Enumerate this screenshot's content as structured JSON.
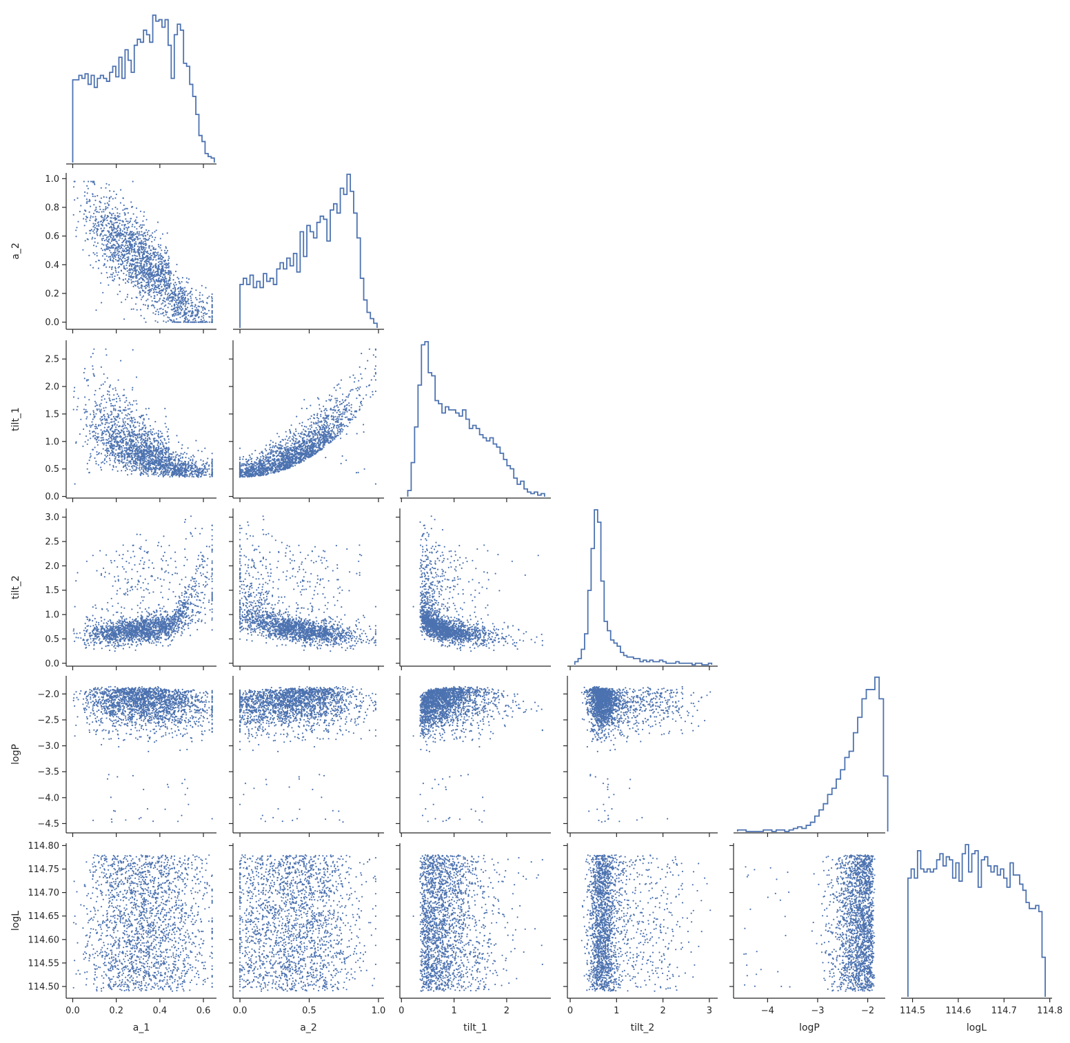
{
  "chart_data": {
    "type": "scatter",
    "title": "",
    "layout": "corner pairplot: histograms on the diagonal, scatter points below the diagonal",
    "grid": false,
    "legend": "none",
    "colors": {
      "marks": "#4c72b0",
      "axes": "#262626"
    },
    "variables": [
      {
        "name": "a_1",
        "range": [
          -0.03,
          0.66
        ],
        "ticks": [
          0,
          0.2,
          0.4,
          0.6
        ],
        "tick_labels": [
          "0.0",
          "0.2",
          "0.4",
          "0.6"
        ]
      },
      {
        "name": "a_2",
        "range": [
          -0.05,
          1.04
        ],
        "ticks": [
          0,
          0.2,
          0.4,
          0.6,
          0.8,
          1.0
        ],
        "tick_labels": [
          "0.0",
          "0.2",
          "0.4",
          "0.6",
          "0.8",
          "1.0"
        ],
        "x_ticks": [
          0,
          0.5,
          1.0
        ],
        "x_tick_labels": [
          "0.0",
          "0.5",
          "1.0"
        ]
      },
      {
        "name": "tilt_1",
        "range": [
          -0.03,
          2.84
        ],
        "ticks": [
          0,
          0.5,
          1.0,
          1.5,
          2.0,
          2.5
        ],
        "tick_labels": [
          "0.0",
          "0.5",
          "1.0",
          "1.5",
          "2.0",
          "2.5"
        ],
        "x_ticks": [
          0,
          1,
          2
        ],
        "x_tick_labels": [
          "0",
          "1",
          "2"
        ]
      },
      {
        "name": "tilt_2",
        "range": [
          -0.06,
          3.18
        ],
        "ticks": [
          0,
          0.5,
          1.0,
          1.5,
          2.0,
          2.5,
          3.0
        ],
        "tick_labels": [
          "0.0",
          "0.5",
          "1.0",
          "1.5",
          "2.0",
          "2.5",
          "3.0"
        ],
        "x_ticks": [
          0,
          1,
          2,
          3
        ],
        "x_tick_labels": [
          "0",
          "1",
          "2",
          "3"
        ]
      },
      {
        "name": "logP",
        "range": [
          -4.68,
          -1.65
        ],
        "ticks": [
          -4.5,
          -4.0,
          -3.5,
          -3.0,
          -2.5,
          -2.0
        ],
        "tick_labels": [
          "−4.5",
          "−4.0",
          "−3.5",
          "−3.0",
          "−2.5",
          "−2.0"
        ],
        "x_ticks": [
          -4,
          -3,
          -2
        ],
        "x_tick_labels": [
          "−4",
          "−3",
          "−2"
        ]
      },
      {
        "name": "logL",
        "range": [
          114.475,
          114.805
        ],
        "ticks": [
          114.5,
          114.55,
          114.6,
          114.65,
          114.7,
          114.75,
          114.8
        ],
        "tick_labels": [
          "114.50",
          "114.55",
          "114.60",
          "114.65",
          "114.70",
          "114.75",
          "114.80"
        ],
        "x_ticks": [
          114.5,
          114.6,
          114.7,
          114.8
        ],
        "x_tick_labels": [
          "114.5",
          "114.6",
          "114.7",
          "114.8"
        ]
      }
    ],
    "histograms": [
      {
        "variable": "a_1",
        "edges": [
          0,
          0.65
        ],
        "counts": [
          55,
          55,
          58,
          56,
          59,
          52,
          58,
          50,
          56,
          58,
          56,
          54,
          60,
          64,
          57,
          70,
          56,
          75,
          68,
          60,
          78,
          82,
          80,
          88,
          85,
          80,
          98,
          94,
          95,
          90,
          95,
          78,
          56,
          85,
          92,
          88,
          66,
          64,
          52,
          44,
          32,
          18,
          14,
          6,
          4,
          3
        ]
      },
      {
        "variable": "a_2",
        "edges": [
          0,
          0.99
        ],
        "counts": [
          28,
          32,
          28,
          34,
          26,
          30,
          26,
          35,
          30,
          32,
          28,
          38,
          42,
          38,
          45,
          40,
          48,
          36,
          62,
          46,
          66,
          62,
          58,
          68,
          72,
          70,
          56,
          76,
          80,
          74,
          90,
          86,
          99,
          88,
          74,
          58,
          32,
          18,
          10,
          6,
          3
        ]
      },
      {
        "variable": "tilt_1",
        "edges": [
          0.12,
          2.72
        ],
        "counts": [
          4,
          22,
          45,
          72,
          98,
          100,
          80,
          78,
          62,
          60,
          54,
          58,
          56,
          56,
          54,
          52,
          56,
          50,
          44,
          46,
          44,
          40,
          38,
          36,
          38,
          34,
          32,
          28,
          24,
          20,
          18,
          12,
          8,
          10,
          5,
          3,
          2,
          3,
          1,
          2
        ]
      },
      {
        "variable": "tilt_2",
        "edges": [
          0.1,
          3.05
        ],
        "counts": [
          2,
          4,
          10,
          20,
          48,
          75,
          100,
          92,
          54,
          28,
          22,
          16,
          14,
          12,
          8,
          6,
          5,
          5,
          4,
          4,
          2,
          3,
          2,
          3,
          2,
          2,
          3,
          2,
          1,
          1,
          1,
          2,
          1,
          1,
          1,
          1,
          0,
          1,
          1,
          0,
          0,
          1
        ]
      },
      {
        "variable": "logP",
        "edges": [
          -4.6,
          -1.6
        ],
        "counts": [
          1,
          1,
          0,
          0,
          0,
          0,
          1,
          1,
          0,
          1,
          1,
          0,
          1,
          2,
          3,
          2,
          4,
          6,
          10,
          14,
          18,
          24,
          28,
          34,
          40,
          48,
          52,
          64,
          74,
          86,
          92,
          92,
          100,
          86,
          36
        ]
      },
      {
        "variable": "logL",
        "edges": [
          114.49,
          114.79
        ],
        "counts": [
          78,
          84,
          78,
          96,
          84,
          82,
          84,
          82,
          84,
          90,
          94,
          86,
          92,
          90,
          78,
          88,
          76,
          94,
          100,
          82,
          94,
          96,
          72,
          90,
          92,
          86,
          82,
          86,
          80,
          84,
          78,
          72,
          88,
          80,
          80,
          74,
          70,
          62,
          58,
          58,
          60,
          56,
          26
        ]
      }
    ],
    "n_scatter_samples": 2000
  }
}
